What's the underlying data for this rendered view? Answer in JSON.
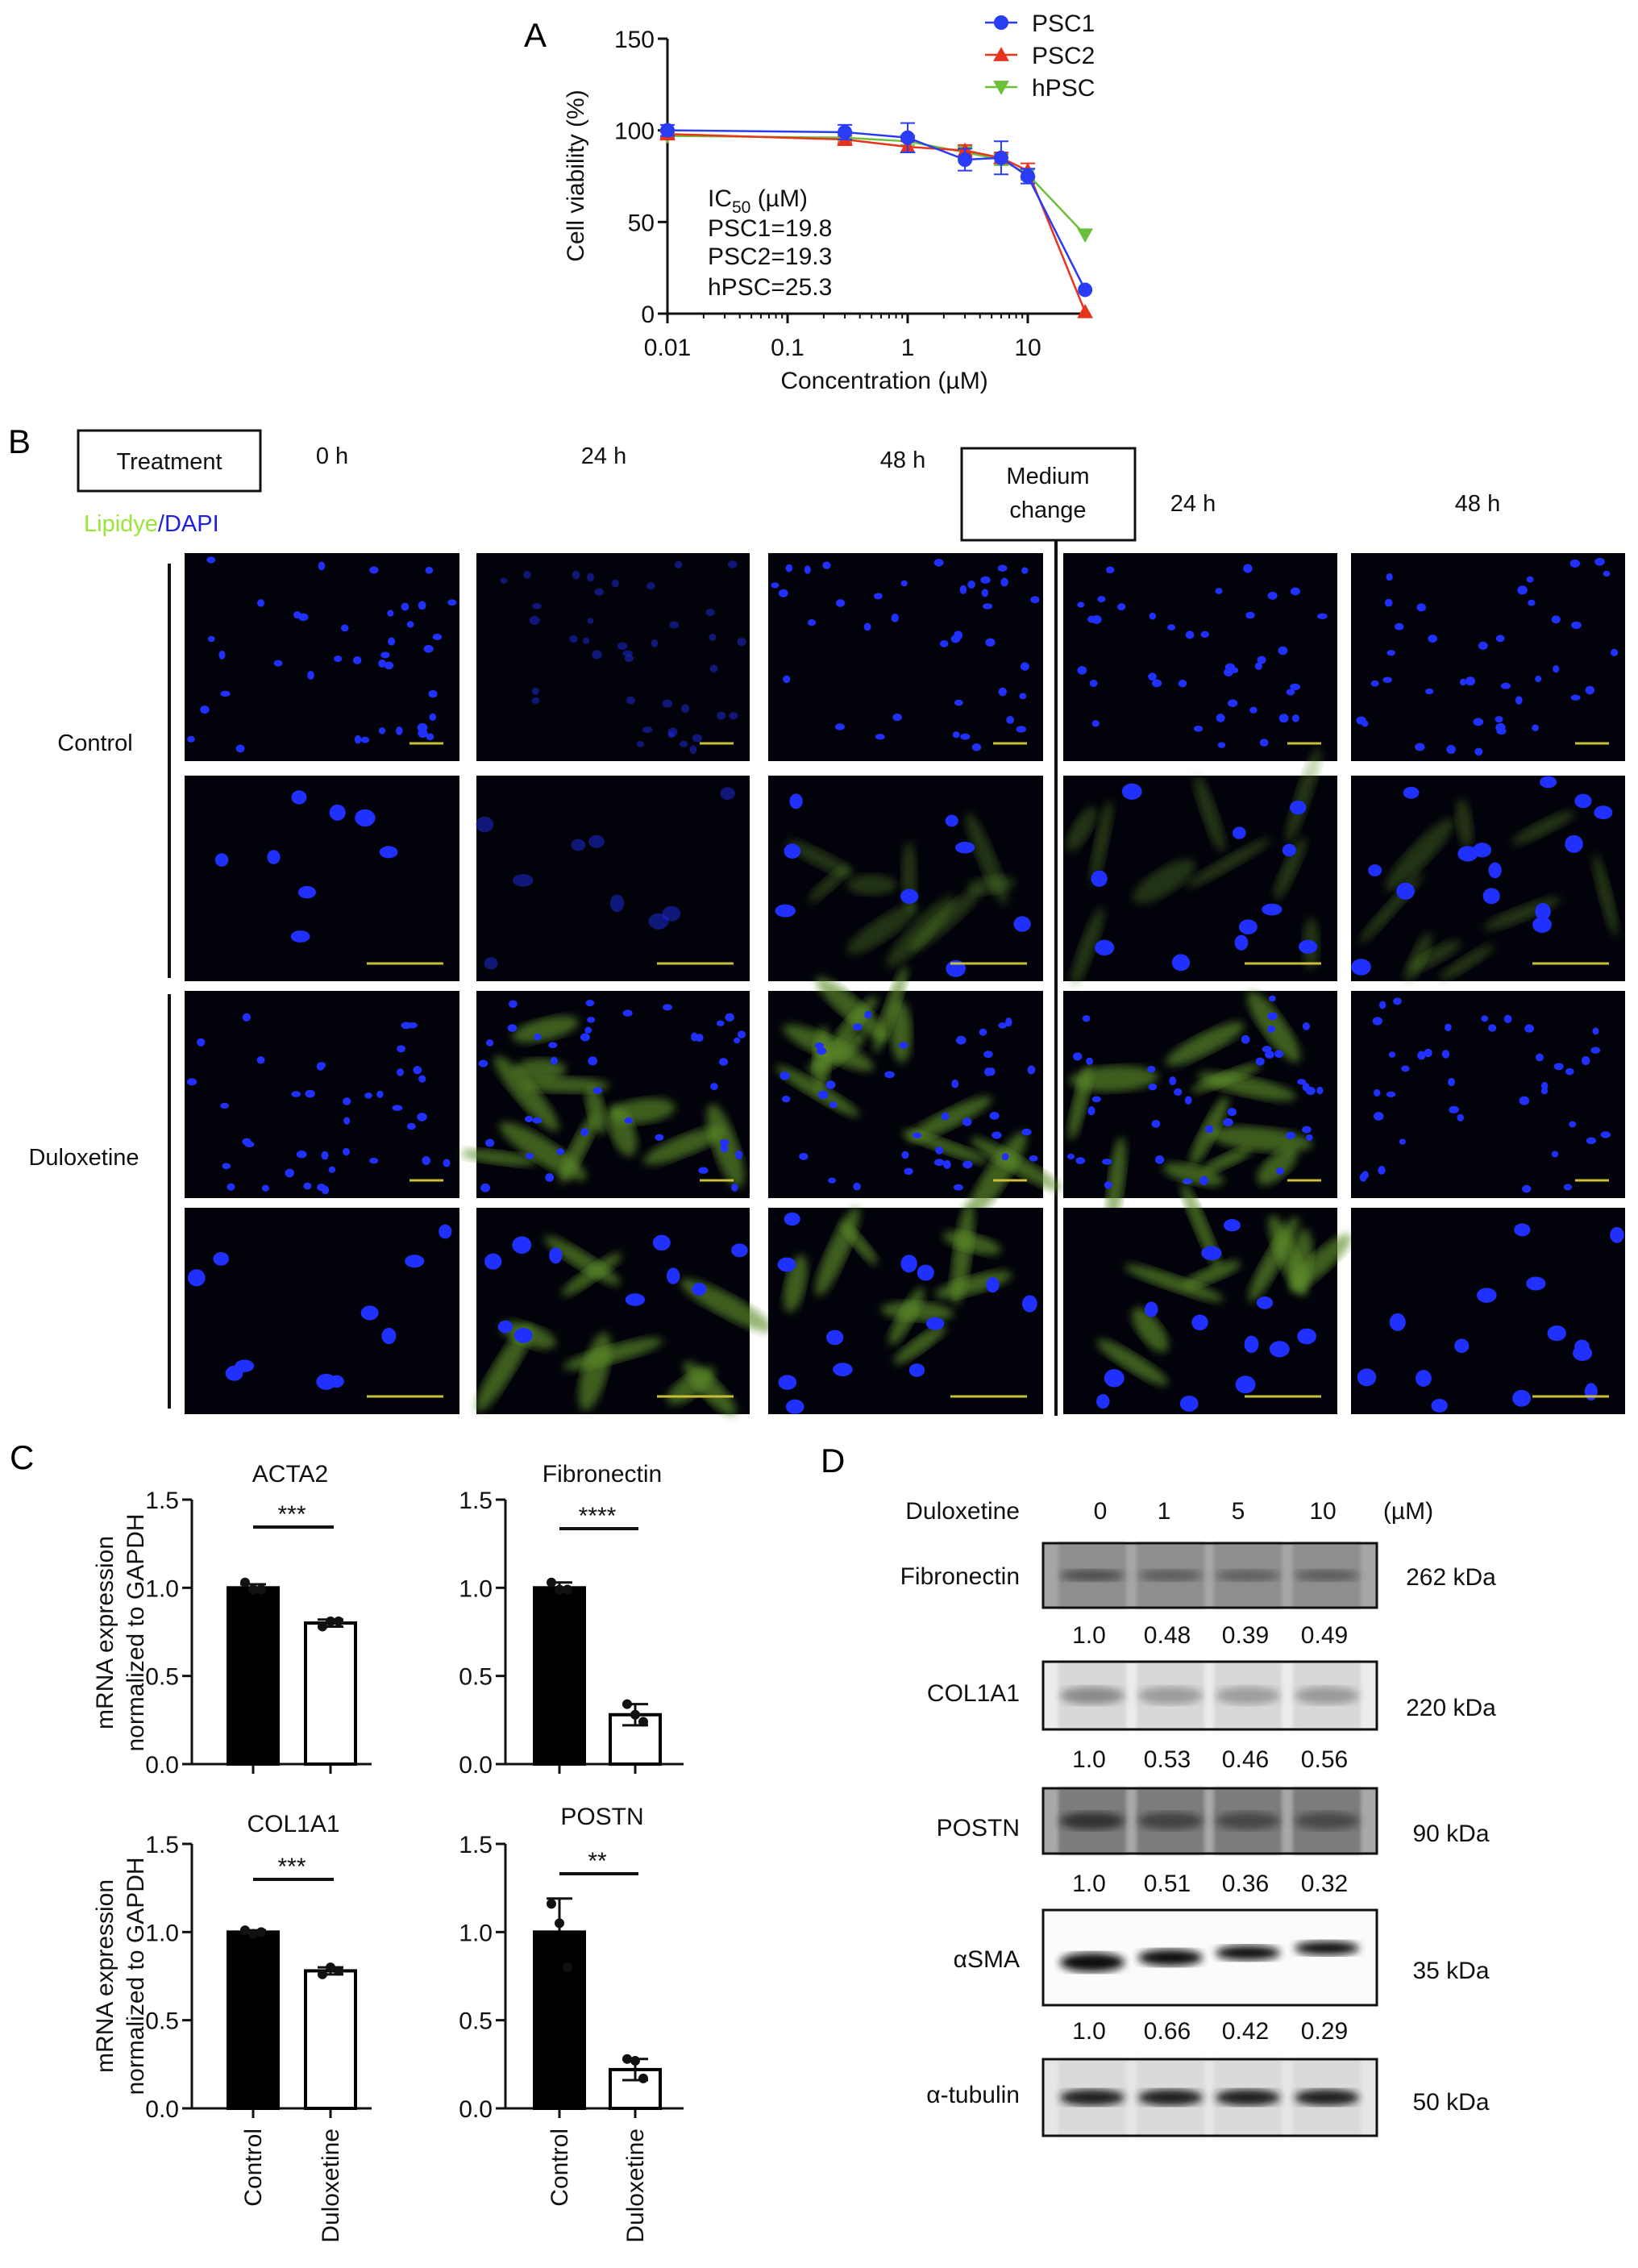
{
  "panels": {
    "a_label": "A",
    "b_label": "B",
    "c_label": "C",
    "d_label": "D"
  },
  "panel_b": {
    "treatment_label": "Treatment",
    "medium_change_line1": "Medium",
    "medium_change_line2": "change",
    "stain_lipidye": "Lipidye",
    "stain_sep": "/",
    "stain_dapi": "DAPI",
    "stain_colors": {
      "lipidye": "#9be53a",
      "dapi": "#2020e0"
    },
    "time_labels_treatment": [
      "0 h",
      "24 h",
      "48 h"
    ],
    "time_labels_after": [
      "24 h",
      "48 h"
    ],
    "row_groups": [
      "Control",
      "Duloxetine"
    ]
  },
  "chart_data": [
    {
      "id": "A",
      "type": "line",
      "xlabel": "Concentration (µM)",
      "ylabel": "Cell viability (%)",
      "x_scale": "log",
      "xlim": [
        0.01,
        30
      ],
      "ylim": [
        0,
        150
      ],
      "x_ticks": [
        "0.01",
        "0.1",
        "1",
        "10"
      ],
      "y_ticks": [
        "0",
        "50",
        "100",
        "150"
      ],
      "legend_position": "top-right",
      "annotation": {
        "title_main": "IC",
        "title_sub": "50",
        "title_unit": " (µM)",
        "lines": [
          "PSC1=19.8",
          "PSC2=19.3",
          "hPSC=25.3"
        ]
      },
      "x": [
        0.01,
        0.3,
        1,
        3,
        6,
        10,
        30
      ],
      "series": [
        {
          "name": "PSC1",
          "color": "#2a3cf5",
          "marker": "circle",
          "values": [
            100,
            99,
            96,
            84,
            85,
            75,
            13
          ],
          "errors": [
            3,
            4,
            8,
            6,
            9,
            4,
            1
          ]
        },
        {
          "name": "PSC2",
          "color": "#e8341c",
          "marker": "triangle-up",
          "values": [
            98,
            95,
            91,
            89,
            85,
            78,
            1
          ],
          "errors": [
            2,
            2,
            3,
            3,
            3,
            4,
            0
          ]
        },
        {
          "name": "hPSC",
          "color": "#6cbf3a",
          "marker": "triangle-down",
          "values": [
            97,
            96,
            94,
            88,
            84,
            76,
            43
          ],
          "errors": [
            2,
            2,
            2,
            2,
            3,
            3,
            1
          ]
        }
      ]
    },
    {
      "id": "C-ACTA2",
      "type": "bar",
      "title": "ACTA2",
      "ylabel": [
        "mRNA expression",
        "normalized to GAPDH"
      ],
      "categories": [
        "Control",
        "Duloxetine"
      ],
      "values": [
        1.0,
        0.8
      ],
      "errors": [
        0.02,
        0.02
      ],
      "points": [
        [
          1.03,
          0.99,
          0.99
        ],
        [
          0.78,
          0.81,
          0.81
        ]
      ],
      "ylim": [
        0,
        1.5
      ],
      "y_ticks": [
        "0.0",
        "0.5",
        "1.0",
        "1.5"
      ],
      "significance": "***"
    },
    {
      "id": "C-Fibronectin",
      "type": "bar",
      "title": "Fibronectin",
      "categories": [
        "Control",
        "Duloxetine"
      ],
      "values": [
        1.0,
        0.28
      ],
      "errors": [
        0.03,
        0.06
      ],
      "points": [
        [
          1.03,
          0.99,
          0.99
        ],
        [
          0.34,
          0.28,
          0.24
        ]
      ],
      "ylim": [
        0,
        1.5
      ],
      "y_ticks": [
        "0.0",
        "0.5",
        "1.0",
        "1.5"
      ],
      "significance": "****"
    },
    {
      "id": "C-COL1A1",
      "type": "bar",
      "title": "COL1A1",
      "ylabel": [
        "mRNA expression",
        "normalized to GAPDH"
      ],
      "categories": [
        "Control",
        "Duloxetine"
      ],
      "values": [
        1.0,
        0.78
      ],
      "errors": [
        0.01,
        0.02
      ],
      "points": [
        [
          1.01,
          0.99,
          1.0
        ],
        [
          0.76,
          0.8,
          0.78
        ]
      ],
      "ylim": [
        0,
        1.5
      ],
      "y_ticks": [
        "0.0",
        "0.5",
        "1.0",
        "1.5"
      ],
      "significance": "***"
    },
    {
      "id": "C-POSTN",
      "type": "bar",
      "title": "POSTN",
      "categories": [
        "Control",
        "Duloxetine"
      ],
      "values": [
        1.0,
        0.22
      ],
      "errors": [
        0.19,
        0.06
      ],
      "points": [
        [
          1.16,
          1.05,
          0.8
        ],
        [
          0.28,
          0.27,
          0.17
        ]
      ],
      "ylim": [
        0,
        1.5
      ],
      "y_ticks": [
        "0.0",
        "0.5",
        "1.0",
        "1.5"
      ],
      "significance": "**"
    },
    {
      "id": "D",
      "type": "table",
      "header_label": "Duloxetine",
      "lanes": [
        "0",
        "1",
        "5",
        "10"
      ],
      "unit": "(µM)",
      "blots": [
        {
          "protein": "Fibronectin",
          "size": "262 kDa",
          "quant": [
            "1.0",
            "0.48",
            "0.39",
            "0.49"
          ]
        },
        {
          "protein": "COL1A1",
          "size": "220 kDa",
          "quant": [
            "1.0",
            "0.53",
            "0.46",
            "0.56"
          ]
        },
        {
          "protein": "POSTN",
          "size": "90 kDa",
          "quant": [
            "1.0",
            "0.51",
            "0.36",
            "0.32"
          ]
        },
        {
          "protein": "αSMA",
          "size": "35 kDa",
          "quant": [
            "1.0",
            "0.66",
            "0.42",
            "0.29"
          ]
        },
        {
          "protein": "α-tubulin",
          "size": "50 kDa",
          "quant": []
        }
      ]
    }
  ]
}
